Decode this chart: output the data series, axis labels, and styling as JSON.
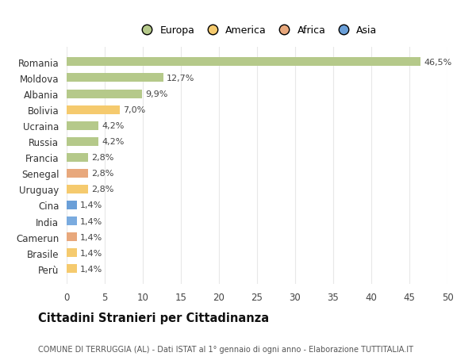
{
  "countries": [
    "Romania",
    "Moldova",
    "Albania",
    "Bolivia",
    "Ucraina",
    "Russia",
    "Francia",
    "Senegal",
    "Uruguay",
    "Cina",
    "India",
    "Camerun",
    "Brasile",
    "Perù"
  ],
  "values": [
    46.5,
    12.7,
    9.9,
    7.0,
    4.2,
    4.2,
    2.8,
    2.8,
    2.8,
    1.4,
    1.4,
    1.4,
    1.4,
    1.4
  ],
  "labels": [
    "46,5%",
    "12,7%",
    "9,9%",
    "7,0%",
    "4,2%",
    "4,2%",
    "2,8%",
    "2,8%",
    "2,8%",
    "1,4%",
    "1,4%",
    "1,4%",
    "1,4%",
    "1,4%"
  ],
  "bar_colors": [
    "#b5c98a",
    "#b5c98a",
    "#b5c98a",
    "#f5ca6e",
    "#b5c98a",
    "#b5c98a",
    "#b5c98a",
    "#e8a87c",
    "#f5ca6e",
    "#6a9fd8",
    "#7aabdf",
    "#e8a87c",
    "#f5ca6e",
    "#f5ca6e"
  ],
  "legend_labels": [
    "Europa",
    "America",
    "Africa",
    "Asia"
  ],
  "legend_colors": [
    "#b5c98a",
    "#f5ca6e",
    "#e8a87c",
    "#6a9fd8"
  ],
  "title": "Cittadini Stranieri per Cittadinanza",
  "subtitle": "COMUNE DI TERRUGGIA (AL) - Dati ISTAT al 1° gennaio di ogni anno - Elaborazione TUTTITALIA.IT",
  "xlim": [
    0,
    50
  ],
  "xticks": [
    0,
    5,
    10,
    15,
    20,
    25,
    30,
    35,
    40,
    45,
    50
  ],
  "background_color": "#ffffff",
  "grid_color": "#e8e8e8",
  "bar_height": 0.55
}
